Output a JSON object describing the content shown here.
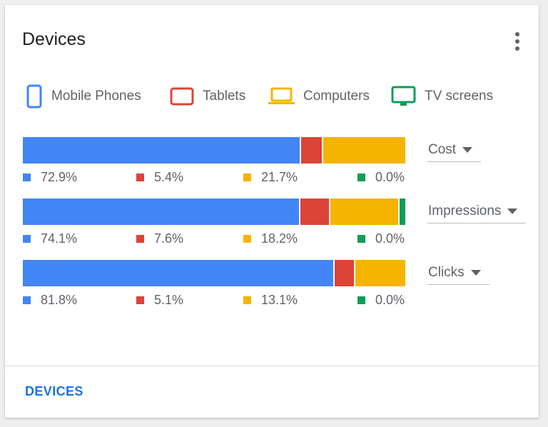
{
  "card": {
    "title": "Devices",
    "footer_link": "DEVICES"
  },
  "legend": [
    {
      "label": "Mobile Phones",
      "icon": "mobile-phone-icon",
      "color": "#4285f4"
    },
    {
      "label": "Tablets",
      "icon": "tablet-icon",
      "color": "#db4437"
    },
    {
      "label": "Computers",
      "icon": "computer-icon",
      "color": "#f4b400"
    },
    {
      "label": "TV screens",
      "icon": "tv-icon",
      "color": "#0f9d58"
    }
  ],
  "colors": {
    "mobile": "#4285f4",
    "tablets": "#db4437",
    "computers": "#f4b400",
    "tv": "#0f9d58"
  },
  "rows": [
    {
      "metric": "Cost",
      "values": [
        72.9,
        5.4,
        21.7,
        0.0
      ],
      "labels": [
        "72.9%",
        "5.4%",
        "21.7%",
        "0.0%"
      ]
    },
    {
      "metric": "Impressions",
      "values": [
        74.1,
        7.6,
        18.2,
        0.0
      ],
      "labels": [
        "74.1%",
        "7.6%",
        "18.2%",
        "0.0%"
      ]
    },
    {
      "metric": "Clicks",
      "values": [
        81.8,
        5.1,
        13.1,
        0.0
      ],
      "labels": [
        "81.8%",
        "5.1%",
        "13.1%",
        "0.0%"
      ]
    }
  ]
}
